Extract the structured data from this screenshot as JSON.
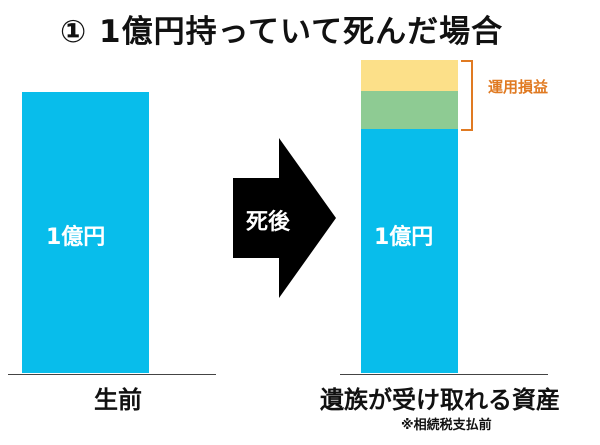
{
  "title": "① 1億円持っていて死んだ場合",
  "left_bar": {
    "label": "1億円",
    "caption": "生前"
  },
  "arrow": {
    "label": "死後"
  },
  "right_bar": {
    "base_label": "1億円",
    "caption": "遺族が受け取れる資産",
    "footnote": "※相続税支払前",
    "bracket_label": "運用損益"
  },
  "colors": {
    "blue": "#08BDEB",
    "green": "#8ECB93",
    "yellow": "#FCE089",
    "arrow": "#000000",
    "bracket": "#E07A22"
  }
}
